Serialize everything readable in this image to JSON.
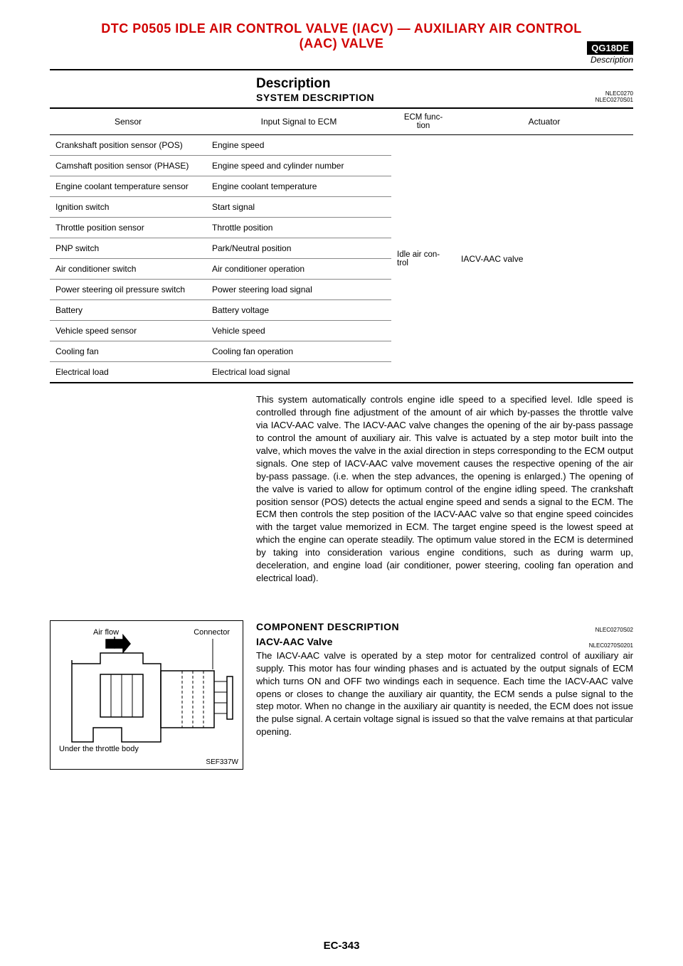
{
  "header": {
    "title_line1": "DTC P0505 IDLE AIR CONTROL VALVE (IACV) — AUXILIARY AIR CONTROL",
    "title_line2": "(AAC) VALVE",
    "engine_badge": "QG18DE",
    "subheading": "Description"
  },
  "description": {
    "title": "Description",
    "subtitle": "SYSTEM DESCRIPTION",
    "code1": "NLEC0270",
    "code2": "NLEC0270S01"
  },
  "table": {
    "headers": {
      "sensor": "Sensor",
      "signal": "Input Signal to ECM",
      "func": "ECM func-\ntion",
      "actuator": "Actuator"
    },
    "func_value": "Idle air con-\ntrol",
    "actuator_value": "IACV-AAC valve",
    "rows": [
      {
        "sensor": "Crankshaft position sensor (POS)",
        "signal": "Engine speed"
      },
      {
        "sensor": "Camshaft position sensor (PHASE)",
        "signal": "Engine speed and cylinder number"
      },
      {
        "sensor": "Engine coolant temperature sensor",
        "signal": "Engine coolant temperature"
      },
      {
        "sensor": "Ignition switch",
        "signal": "Start signal"
      },
      {
        "sensor": "Throttle position sensor",
        "signal": "Throttle position"
      },
      {
        "sensor": "PNP switch",
        "signal": "Park/Neutral position"
      },
      {
        "sensor": "Air conditioner switch",
        "signal": "Air conditioner operation"
      },
      {
        "sensor": "Power steering oil pressure switch",
        "signal": "Power steering load signal"
      },
      {
        "sensor": "Battery",
        "signal": "Battery voltage"
      },
      {
        "sensor": "Vehicle speed sensor",
        "signal": "Vehicle speed"
      },
      {
        "sensor": "Cooling fan",
        "signal": "Cooling fan operation"
      },
      {
        "sensor": "Electrical load",
        "signal": "Electrical load signal"
      }
    ]
  },
  "system_text": "This system automatically controls engine idle speed to a specified level. Idle speed is controlled through fine adjustment of the amount of air which by-passes the throttle valve via IACV-AAC valve. The IACV-AAC valve changes the opening of the air by-pass passage to control the amount of auxiliary air. This valve is actuated by a step motor built into the valve, which moves the valve in the axial direction in steps corresponding to the ECM output signals. One step of IACV-AAC valve movement causes the respective opening of the air by-pass passage. (i.e. when the step advances, the opening is enlarged.) The opening of the valve is varied to allow for optimum control of the engine idling speed. The crankshaft position sensor (POS) detects the actual engine speed and sends a signal to the ECM. The ECM then controls the step position of the IACV-AAC valve so that engine speed coincides with the target value memorized in ECM. The target engine speed is the lowest speed at which the engine can operate steadily. The optimum value stored in the ECM is determined by taking into consideration various engine conditions, such as during warm up, deceleration, and engine load (air conditioner, power steering, cooling fan operation and electrical load).",
  "component": {
    "title": "COMPONENT DESCRIPTION",
    "code1": "NLEC0270S02",
    "sub": "IACV-AAC Valve",
    "code2": "NLEC0270S0201",
    "text": "The IACV-AAC valve is operated by a step motor for centralized control of auxiliary air supply. This motor has four winding phases and is actuated by the output signals of ECM which turns ON and OFF two windings each in sequence. Each time the IACV-AAC valve opens or closes to change the auxiliary air quantity, the ECM sends a pulse signal to the step motor. When no change in the auxiliary air quantity is needed, the ECM does not issue the pulse signal. A certain voltage signal is issued so that the valve remains at that particular opening."
  },
  "diagram": {
    "air_flow": "Air flow",
    "connector": "Connector",
    "under": "Under the throttle body",
    "fig_code": "SEF337W"
  },
  "page_number": "EC-343"
}
